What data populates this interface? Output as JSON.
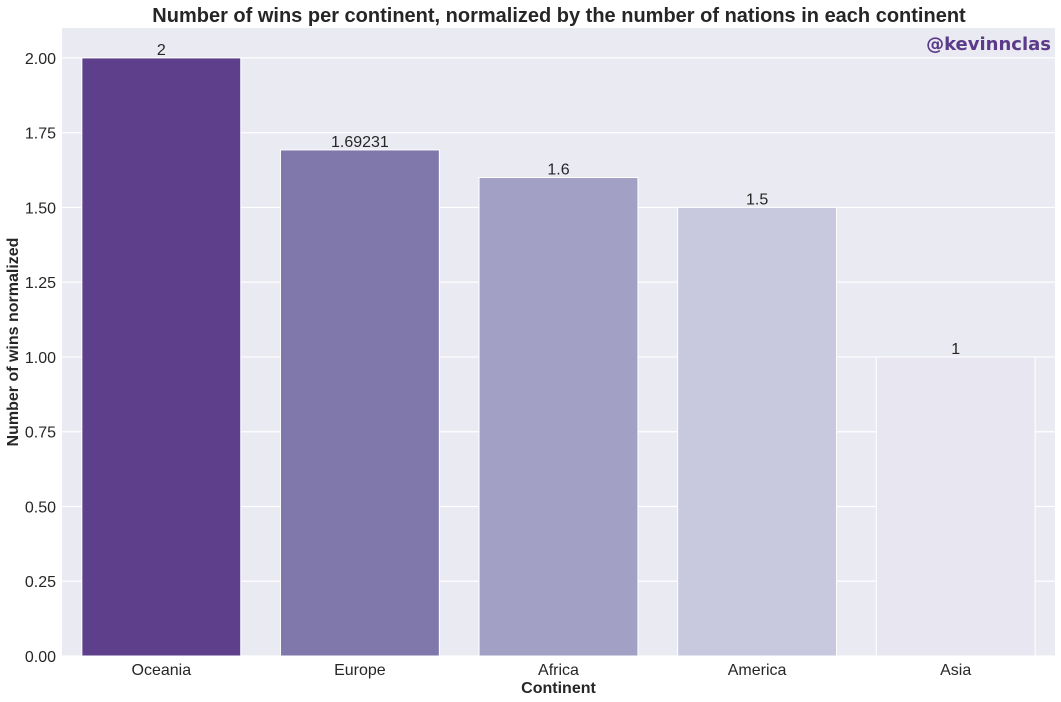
{
  "chart_data": {
    "type": "bar",
    "title": "Number of wins per continent, normalized by the number of nations in each continent",
    "xlabel": "Continent",
    "ylabel": "Number of wins normalized",
    "categories": [
      "Oceania",
      "Europe",
      "Africa",
      "America",
      "Asia"
    ],
    "values": [
      2,
      1.69231,
      1.6,
      1.5,
      1
    ],
    "value_labels": [
      "2",
      "1.69231",
      "1.6",
      "1.5",
      "1"
    ],
    "bar_colors": [
      "#5e3f8c",
      "#8077ab",
      "#a3a0c5",
      "#c8c9de",
      "#e8e7f1"
    ],
    "ylim": [
      0,
      2.1
    ],
    "yticks": [
      0,
      0.25,
      0.5,
      0.75,
      1.0,
      1.25,
      1.5,
      1.75,
      2.0
    ],
    "ytick_labels": [
      "0.00",
      "0.25",
      "0.50",
      "0.75",
      "1.00",
      "1.25",
      "1.50",
      "1.75",
      "2.00"
    ],
    "grid": true,
    "background_color": "#eaeaf2",
    "watermark": "@kevinnclas",
    "watermark_color": "#5b3a8a"
  }
}
